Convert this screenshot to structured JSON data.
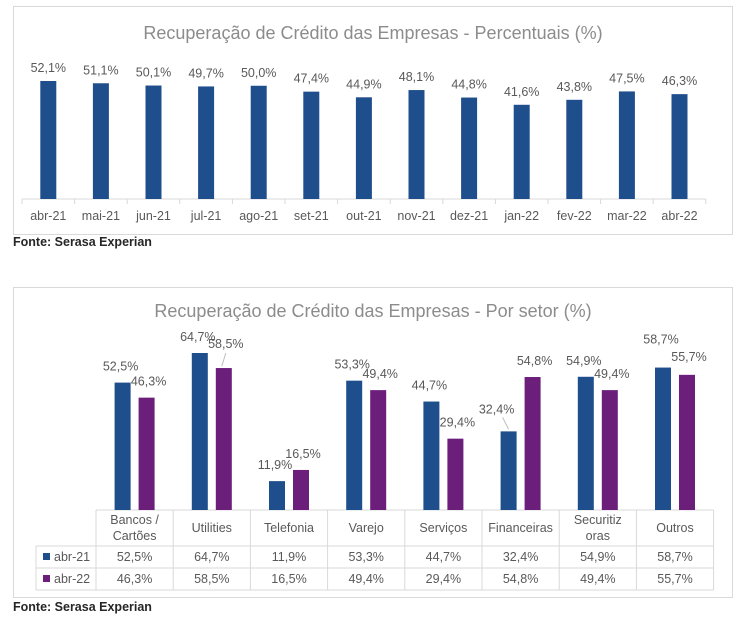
{
  "colors": {
    "series1": "#1f4e8c",
    "series2": "#6b1f7b",
    "title": "#8c8c8c",
    "text": "#595959",
    "grid": "#d9d9d9"
  },
  "source_label": "Fonte: Serasa Experian",
  "chart_data": [
    {
      "type": "bar",
      "title": "Recuperação de Crédito das Empresas - Percentuais (%)",
      "categories": [
        "abr-21",
        "mai-21",
        "jun-21",
        "jul-21",
        "ago-21",
        "set-21",
        "out-21",
        "nov-21",
        "dez-21",
        "jan-22",
        "fev-22",
        "mar-22",
        "abr-22"
      ],
      "values": [
        52.1,
        51.1,
        50.1,
        49.7,
        50.0,
        47.4,
        44.9,
        48.1,
        44.8,
        41.6,
        43.8,
        47.5,
        46.3
      ],
      "value_labels": [
        "52,1%",
        "51,1%",
        "50,1%",
        "49,7%",
        "50,0%",
        "47,4%",
        "44,9%",
        "48,1%",
        "44,8%",
        "41,6%",
        "43,8%",
        "47,5%",
        "46,3%"
      ],
      "ylim": [
        0,
        52.1
      ],
      "grid": false,
      "legend": "none"
    },
    {
      "type": "bar",
      "title": "Recuperação de Crédito das Empresas - Por setor (%)",
      "categories": [
        [
          "Bancos /",
          "Cartões"
        ],
        [
          "Utilities"
        ],
        [
          "Telefonia"
        ],
        [
          "Varejo"
        ],
        [
          "Serviços"
        ],
        [
          "Financeiras"
        ],
        [
          "Securitiz",
          "oras"
        ],
        [
          "Outros"
        ]
      ],
      "series": [
        {
          "name": "abr-21",
          "values": [
            52.5,
            64.7,
            11.9,
            53.3,
            44.7,
            32.4,
            54.9,
            58.7
          ],
          "labels": [
            "52,5%",
            "64,7%",
            "11,9%",
            "53,3%",
            "44,7%",
            "32,4%",
            "54,9%",
            "58,7%"
          ]
        },
        {
          "name": "abr-22",
          "values": [
            46.3,
            58.5,
            16.5,
            49.4,
            29.4,
            54.8,
            49.4,
            55.7
          ],
          "labels": [
            "46,3%",
            "58,5%",
            "16,5%",
            "49,4%",
            "29,4%",
            "54,8%",
            "49,4%",
            "55,7%"
          ]
        }
      ],
      "ylim": [
        0,
        64.7
      ],
      "grid": false,
      "legend": "data table below chart"
    }
  ]
}
